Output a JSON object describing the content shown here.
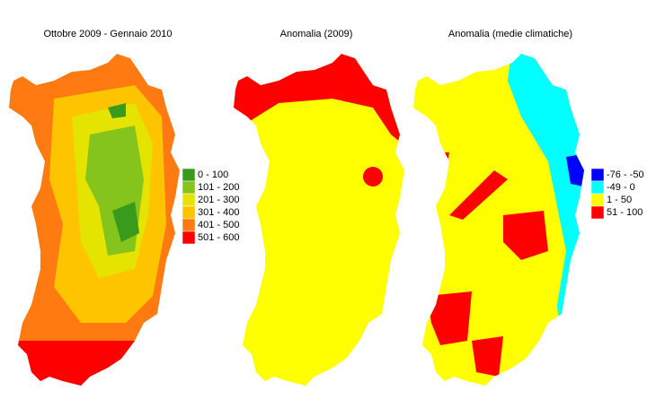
{
  "panels": [
    {
      "title": "Ottobre 2009 - Gennaio 2010",
      "legend": [
        {
          "label": "0 - 100",
          "color": "#3a9a1c"
        },
        {
          "label": "101 - 200",
          "color": "#84c41c"
        },
        {
          "label": "201 - 300",
          "color": "#e4e400"
        },
        {
          "label": "301 - 400",
          "color": "#ffc400"
        },
        {
          "label": "401 - 500",
          "color": "#ff7a10"
        },
        {
          "label": "501 - 600",
          "color": "#ff0000"
        }
      ]
    },
    {
      "title": "Anomalia (2009)"
    },
    {
      "title": "Anomalia (medie climatiche)",
      "legend": [
        {
          "label": "-76 - -50",
          "color": "#0000ff"
        },
        {
          "label": "-49 - 0",
          "color": "#00ffff"
        },
        {
          "label": "1 - 50",
          "color": "#ffff00"
        },
        {
          "label": "51 - 100",
          "color": "#ff0000"
        }
      ]
    }
  ]
}
